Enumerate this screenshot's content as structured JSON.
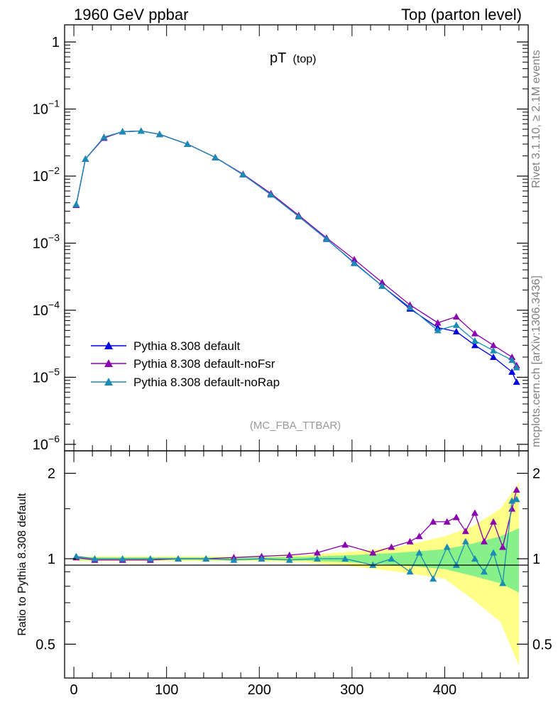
{
  "header": {
    "left_title": "1960 GeV ppbar",
    "right_title": "Top (parton level)"
  },
  "side_labels": {
    "rivet": "Rivet 3.1.10, ≥ 2.1M events",
    "mcplots": "mcplots.cern.ch [arXiv:1306.3436]"
  },
  "colors": {
    "default": "#0000e0",
    "noFsr": "#8a00b0",
    "noRap": "#1a8cb4",
    "band_outer": "#ffff88",
    "band_inner": "#88f088"
  },
  "chart_data": [
    {
      "type": "line",
      "title": "pT",
      "title_sub": "(top)",
      "watermark": "(MC_FBA_TTBAR)",
      "yscale": "log",
      "ylim": [
        8e-07,
        1.8
      ],
      "xlim": [
        -10,
        490
      ],
      "y_tick_labels": [
        "1",
        "10",
        "10",
        "10",
        "10",
        "10",
        "10"
      ],
      "y_tick_exponents": [
        "",
        "−1",
        "−2",
        "−3",
        "−4",
        "−5",
        "−6"
      ],
      "legend_placement": "lower-left",
      "series": [
        {
          "name": "Pythia 8.308 default",
          "x": [
            2.5,
            12.5,
            32.5,
            52.5,
            72.5,
            92.5,
            122.5,
            152.5,
            182.5,
            212.5,
            242.5,
            272.5,
            302.5,
            332.5,
            362.5,
            392.5,
            412.5,
            432.5,
            452.5,
            472.5,
            477.5
          ],
          "y": [
            0.0037,
            0.018,
            0.038,
            0.046,
            0.047,
            0.042,
            0.03,
            0.019,
            0.0105,
            0.0053,
            0.0025,
            0.00115,
            0.00051,
            0.00023,
            0.000105,
            5.5e-05,
            4.8e-05,
            3e-05,
            2e-05,
            1.2e-05,
            8.5e-06
          ]
        },
        {
          "name": "Pythia 8.308 default-noFsr",
          "x": [
            2.5,
            12.5,
            32.5,
            52.5,
            72.5,
            92.5,
            122.5,
            152.5,
            182.5,
            212.5,
            242.5,
            272.5,
            302.5,
            332.5,
            362.5,
            392.5,
            412.5,
            432.5,
            452.5,
            472.5,
            477.5
          ],
          "y": [
            0.0037,
            0.018,
            0.037,
            0.046,
            0.047,
            0.042,
            0.03,
            0.019,
            0.0107,
            0.0055,
            0.0026,
            0.0012,
            0.00057,
            0.00026,
            0.00012,
            6.5e-05,
            8e-05,
            4.5e-05,
            3e-05,
            2e-05,
            1.5e-05
          ]
        },
        {
          "name": "Pythia 8.308 default-noRap",
          "x": [
            2.5,
            12.5,
            32.5,
            52.5,
            72.5,
            92.5,
            122.5,
            152.5,
            182.5,
            212.5,
            242.5,
            272.5,
            302.5,
            332.5,
            362.5,
            392.5,
            412.5,
            432.5,
            452.5,
            472.5,
            477.5
          ],
          "y": [
            0.0038,
            0.018,
            0.038,
            0.046,
            0.047,
            0.042,
            0.03,
            0.019,
            0.0105,
            0.0053,
            0.0025,
            0.00116,
            0.0005,
            0.00023,
            0.00011,
            5e-05,
            6e-05,
            3.5e-05,
            2.5e-05,
            1.8e-05,
            1.4e-05
          ]
        }
      ]
    },
    {
      "type": "line",
      "ylabel": "Ratio to Pythia 8.308 default",
      "ylim": [
        0.38,
        2.4
      ],
      "xlim": [
        -10,
        490
      ],
      "x_ticks": [
        0,
        100,
        200,
        300,
        400
      ],
      "y_ticks": [
        0.5,
        1,
        2
      ],
      "y_tick_labels": [
        "0.5",
        "1",
        "2"
      ],
      "band": {
        "x": [
          0,
          100,
          200,
          250,
          300,
          350,
          400,
          430,
          460,
          480
        ],
        "outer_low": [
          0.98,
          0.98,
          0.98,
          0.97,
          0.94,
          0.9,
          0.85,
          0.72,
          0.6,
          0.42
        ],
        "outer_high": [
          1.02,
          1.02,
          1.02,
          1.03,
          1.06,
          1.1,
          1.2,
          1.3,
          1.5,
          1.85
        ],
        "inner_low": [
          0.99,
          0.99,
          0.99,
          0.985,
          0.97,
          0.95,
          0.92,
          0.87,
          0.82,
          0.76
        ],
        "inner_high": [
          1.01,
          1.01,
          1.01,
          1.015,
          1.03,
          1.05,
          1.08,
          1.13,
          1.2,
          1.28
        ]
      },
      "series": [
        {
          "name": "Pythia 8.308 default-noFsr",
          "x": [
            2.5,
            22.5,
            52.5,
            82.5,
            112.5,
            142.5,
            172.5,
            202.5,
            232.5,
            262.5,
            292.5,
            322.5,
            342.5,
            362.5,
            372.5,
            387.5,
            402.5,
            412.5,
            422.5,
            432.5,
            442.5,
            452.5,
            462.5,
            472.5,
            477.5
          ],
          "y": [
            1.01,
            0.99,
            0.99,
            0.99,
            1.0,
            1.0,
            1.01,
            1.02,
            1.03,
            1.05,
            1.12,
            1.05,
            1.1,
            1.15,
            1.2,
            1.35,
            1.35,
            1.4,
            1.25,
            1.45,
            1.15,
            1.35,
            1.1,
            1.5,
            1.75
          ]
        },
        {
          "name": "Pythia 8.308 default-noRap",
          "x": [
            2.5,
            22.5,
            52.5,
            82.5,
            112.5,
            142.5,
            172.5,
            202.5,
            232.5,
            262.5,
            292.5,
            322.5,
            342.5,
            362.5,
            372.5,
            387.5,
            402.5,
            412.5,
            422.5,
            432.5,
            442.5,
            452.5,
            462.5,
            472.5,
            477.5
          ],
          "y": [
            1.02,
            1.0,
            1.0,
            1.0,
            1.0,
            1.0,
            0.99,
            1.0,
            0.99,
            1.0,
            1.0,
            0.95,
            1.0,
            0.9,
            1.05,
            0.85,
            1.1,
            0.95,
            1.15,
            1.0,
            0.9,
            1.05,
            0.82,
            1.6,
            1.62
          ]
        }
      ]
    }
  ]
}
